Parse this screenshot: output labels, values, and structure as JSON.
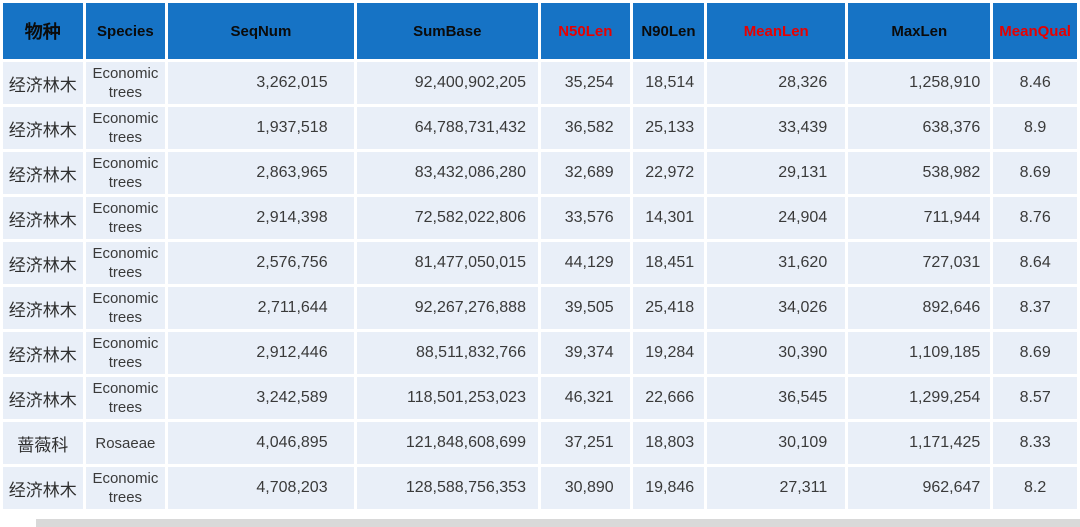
{
  "chart_data": {
    "type": "table",
    "title": "",
    "columns": [
      "物种",
      "Species",
      "SeqNum",
      "SumBase",
      "N50Len",
      "N90Len",
      "MeanLen",
      "MaxLen",
      "MeanQual"
    ],
    "header_red_columns": [
      "N50Len",
      "MeanLen",
      "MeanQual"
    ],
    "rows": [
      [
        "经济林木",
        "Economic trees",
        "3,262,015",
        "92,400,902,205",
        "35,254",
        "18,514",
        "28,326",
        "1,258,910",
        "8.46"
      ],
      [
        "经济林木",
        "Economic trees",
        "1,937,518",
        "64,788,731,432",
        "36,582",
        "25,133",
        "33,439",
        "638,376",
        "8.9"
      ],
      [
        "经济林木",
        "Economic trees",
        "2,863,965",
        "83,432,086,280",
        "32,689",
        "22,972",
        "29,131",
        "538,982",
        "8.69"
      ],
      [
        "经济林木",
        "Economic trees",
        "2,914,398",
        "72,582,022,806",
        "33,576",
        "14,301",
        "24,904",
        "711,944",
        "8.76"
      ],
      [
        "经济林木",
        "Economic trees",
        "2,576,756",
        "81,477,050,015",
        "44,129",
        "18,451",
        "31,620",
        "727,031",
        "8.64"
      ],
      [
        "经济林木",
        "Economic trees",
        "2,711,644",
        "92,267,276,888",
        "39,505",
        "25,418",
        "34,026",
        "892,646",
        "8.37"
      ],
      [
        "经济林木",
        "Economic trees",
        "2,912,446",
        "88,511,832,766",
        "39,374",
        "19,284",
        "30,390",
        "1,109,185",
        "8.69"
      ],
      [
        "经济林木",
        "Economic trees",
        "3,242,589",
        "118,501,253,023",
        "46,321",
        "22,666",
        "36,545",
        "1,299,254",
        "8.57"
      ],
      [
        "蔷薇科",
        "Rosaeae",
        "4,046,895",
        "121,848,608,699",
        "37,251",
        "18,803",
        "30,109",
        "1,171,425",
        "8.33"
      ],
      [
        "经济林木",
        "Economic trees",
        "4,708,203",
        "128,588,756,353",
        "30,890",
        "19,846",
        "27,311",
        "962,647",
        "8.2"
      ]
    ],
    "colors": {
      "header_bg": "#1673C5",
      "header_text": "#0b0b0b",
      "header_red_text": "#e80000",
      "row_bg": "#E9EFF8",
      "cell_text": "#3a3a3a",
      "gridline": "#ffffff"
    }
  }
}
